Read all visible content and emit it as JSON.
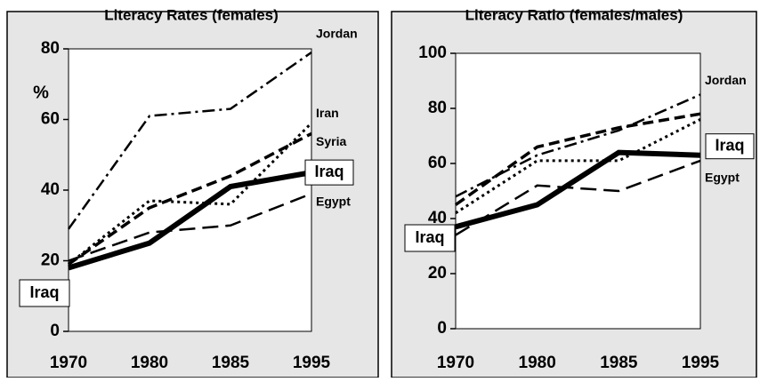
{
  "chart_data": [
    {
      "type": "line",
      "title": "Literacy Rates (females)",
      "ylabel": "%",
      "categories": [
        "1970",
        "1980",
        "1985",
        "1995"
      ],
      "ylim": [
        0,
        80
      ],
      "yticks": [
        0,
        20,
        40,
        60,
        80
      ],
      "series": [
        {
          "name": "Jordan",
          "color": "#000",
          "dash": "dashdot",
          "values": [
            29,
            61,
            63,
            79
          ]
        },
        {
          "name": "Iran",
          "color": "#000",
          "dash": "dotted",
          "values": [
            19,
            37,
            36,
            59
          ]
        },
        {
          "name": "Syria",
          "color": "#000",
          "dash": "dashed",
          "values": [
            19,
            35,
            44,
            56
          ]
        },
        {
          "name": "Iraq",
          "color": "#000",
          "dash": "solid",
          "values": [
            18,
            25,
            41,
            45
          ]
        },
        {
          "name": "Egypt",
          "color": "#000",
          "dash": "longdash",
          "values": [
            20,
            28,
            30,
            39
          ]
        }
      ]
    },
    {
      "type": "line",
      "title": "Literacy Ratio (females/males)",
      "categories": [
        "1970",
        "1980",
        "1985",
        "1995"
      ],
      "ylim": [
        0,
        100
      ],
      "yticks": [
        0,
        20,
        40,
        60,
        80,
        100
      ],
      "series": [
        {
          "name": "Jordan",
          "color": "#000",
          "dash": "dashdot",
          "values": [
            48,
            63,
            72,
            85
          ]
        },
        {
          "color": "#000",
          "dash": "dashed",
          "values": [
            45,
            66,
            73,
            78
          ]
        },
        {
          "color": "#000",
          "dash": "dotted",
          "values": [
            42,
            61,
            61,
            76
          ]
        },
        {
          "name": "Iraq",
          "color": "#000",
          "dash": "solid",
          "values": [
            37,
            45,
            64,
            63
          ]
        },
        {
          "name": "Egypt",
          "color": "#000",
          "dash": "longdash",
          "values": [
            34,
            52,
            50,
            61
          ]
        }
      ]
    }
  ]
}
